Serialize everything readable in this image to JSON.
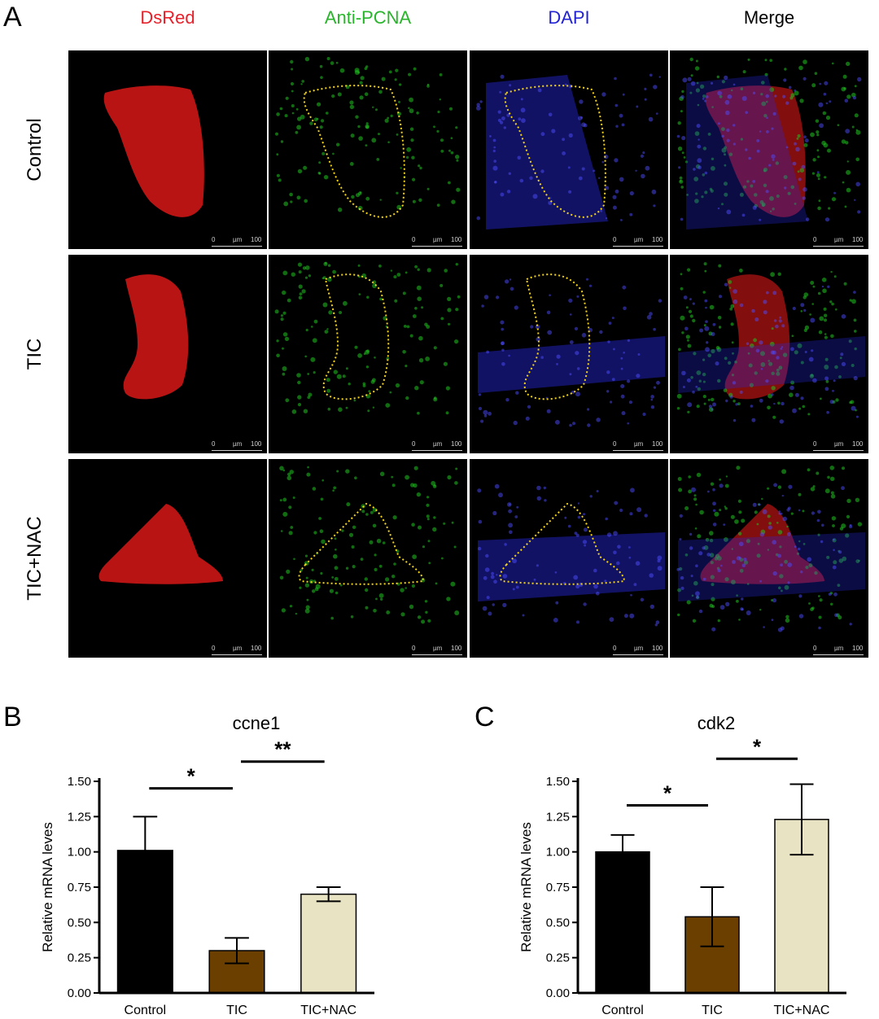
{
  "panel_a": {
    "letter": "A",
    "column_headers": [
      {
        "label": "DsRed",
        "color": "#e8202a"
      },
      {
        "label": "Anti-PCNA",
        "color": "#29b52b"
      },
      {
        "label": "DAPI",
        "color": "#2323d6"
      },
      {
        "label": "Merge",
        "color": "#000000"
      }
    ],
    "row_labels": [
      "Control",
      "TIC",
      "TIC+NAC"
    ],
    "scale_bar": {
      "start": "0",
      "unit": "µm",
      "end": "100"
    }
  },
  "chart_data": [
    {
      "panel_letter": "B",
      "type": "bar",
      "title": "ccne1",
      "ylabel": "Relative mRNA leves",
      "categories": [
        "Control",
        "TIC",
        "TIC+NAC"
      ],
      "values": [
        1.01,
        0.3,
        0.7
      ],
      "errors": [
        0.24,
        0.09,
        0.05
      ],
      "colors": [
        "#000000",
        "#6b3f00",
        "#e8e3c2"
      ],
      "ylim": [
        0,
        1.5
      ],
      "yticks": [
        "0.00",
        "0.25",
        "0.50",
        "0.75",
        "1.00",
        "1.25",
        "1.50"
      ],
      "significance": [
        {
          "from": 0,
          "to": 1,
          "label": "*",
          "y": 1.45
        },
        {
          "from": 1,
          "to": 2,
          "label": "**",
          "y": 1.64
        }
      ]
    },
    {
      "panel_letter": "C",
      "type": "bar",
      "title": "cdk2",
      "ylabel": "Relative mRNA leves",
      "categories": [
        "Control",
        "TIC",
        "TIC+NAC"
      ],
      "values": [
        1.0,
        0.54,
        1.23
      ],
      "errors": [
        0.12,
        0.21,
        0.25
      ],
      "colors": [
        "#000000",
        "#6b3f00",
        "#e8e3c2"
      ],
      "ylim": [
        0,
        1.5
      ],
      "yticks": [
        "0.00",
        "0.25",
        "0.50",
        "0.75",
        "1.00",
        "1.25",
        "1.50"
      ],
      "significance": [
        {
          "from": 0,
          "to": 1,
          "label": "*",
          "y": 1.33
        },
        {
          "from": 1,
          "to": 2,
          "label": "*",
          "y": 1.66
        }
      ]
    }
  ]
}
